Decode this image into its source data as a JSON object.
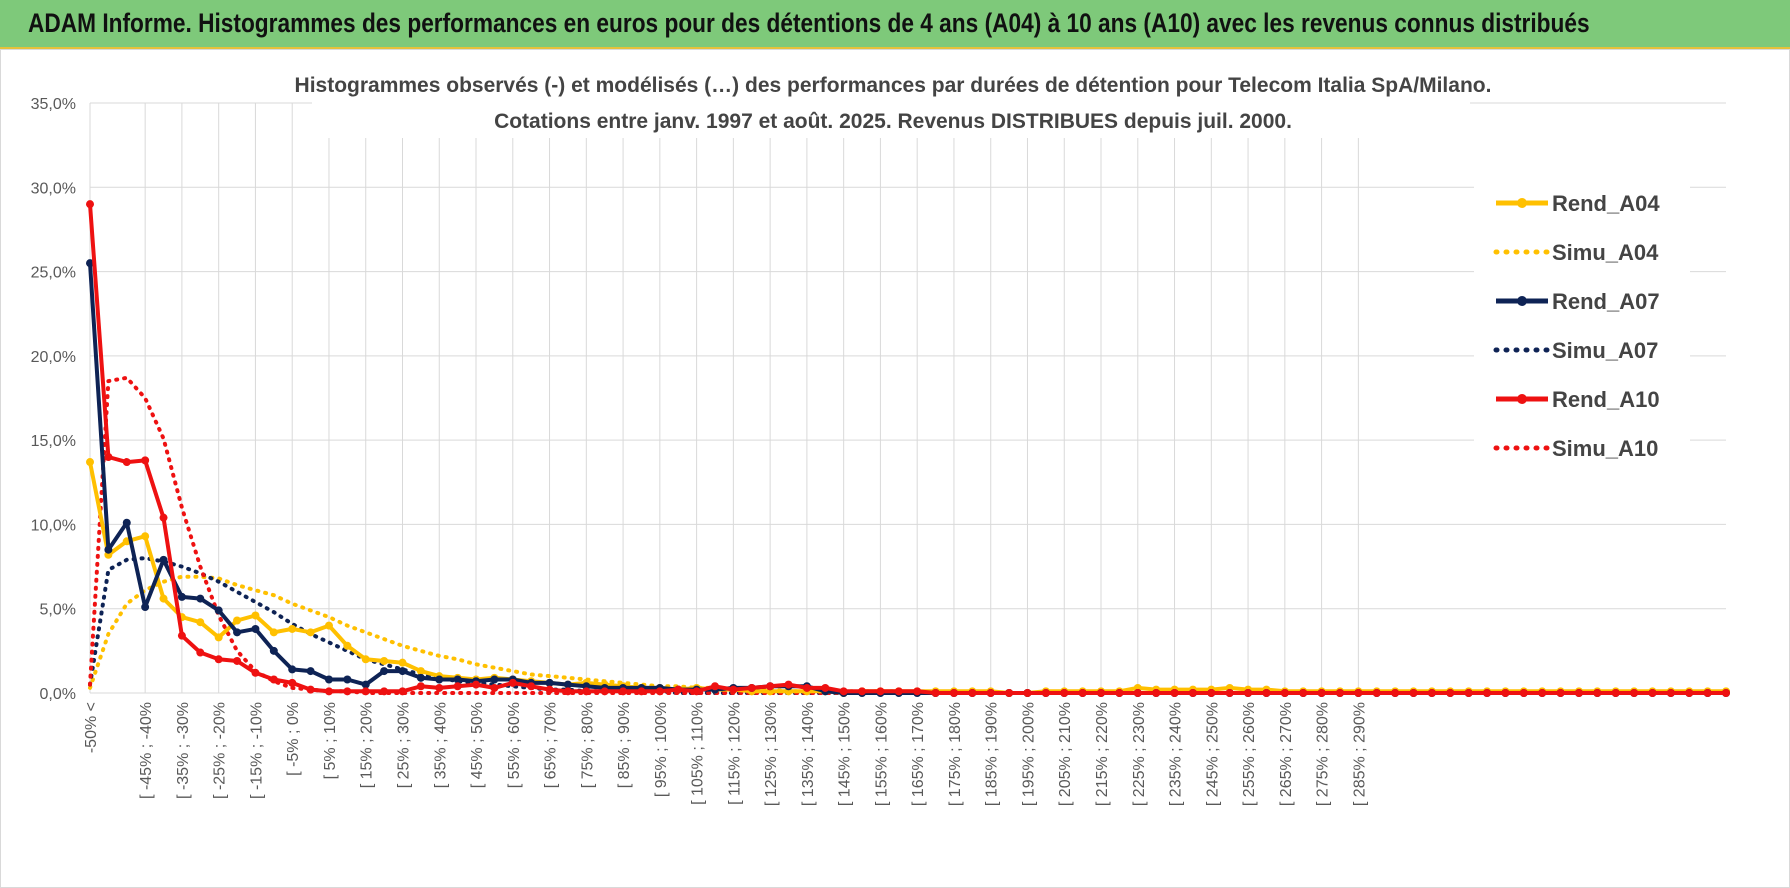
{
  "banner": {
    "title": "ADAM Informe. Histogrammes des performances en euros pour des détentions de 4 ans (A04) à 10 ans (A10) avec les revenus connus distribués"
  },
  "colors": {
    "A04": "#ffc000",
    "A07": "#0e2355",
    "A10": "#ee1111",
    "banner": "#7ec97a",
    "grid": "#d9d9d9"
  },
  "chart_data": {
    "type": "line",
    "title": "Histogrammes observés (-) et modélisés (…) des performances par durées de détention pour Telecom Italia SpA/Milano.",
    "subtitle": "Cotations entre janv. 1997 et août. 2025. Revenus DISTRIBUES depuis juil. 2000.",
    "ylim": [
      0,
      35
    ],
    "yticks": [
      "0,0%",
      "5,0%",
      "10,0%",
      "15,0%",
      "20,0%",
      "25,0%",
      "30,0%",
      "35,0%"
    ],
    "grid": true,
    "legend_position": "right",
    "x_labels_shown": [
      "-50% <",
      "[ -45% ; -40%",
      "[ -35% ; -30%",
      "[ -25% ; -20%",
      "[ -15% ; -10%",
      "[ -5% ; 0%",
      "[ 5% ; 10%",
      "[ 15% ; 20%",
      "[ 25% ; 30%",
      "[ 35% ; 40%",
      "[ 45% ; 50%",
      "[ 55% ; 60%",
      "[ 65% ; 70%",
      "[ 75% ; 80%",
      "[ 85% ; 90%",
      "[ 95% ; 100%",
      "[ 105% ; 110%",
      "[ 115% ; 120%",
      "[ 125% ; 130%",
      "[ 135% ; 140%",
      "[ 145% ; 150%",
      "[ 155% ; 160%",
      "[ 165% ; 170%",
      "[ 175% ; 180%",
      "[ 185% ; 190%",
      "[ 195% ; 200%",
      "[ 205% ; 210%",
      "[ 215% ; 220%",
      "[ 225% ; 230%",
      "[ 235% ; 240%",
      "[ 245% ; 250%",
      "[ 255% ; 260%",
      "[ 265% ; 270%",
      "[ 275% ; 280%",
      "[ 285% ; 290%"
    ],
    "series": [
      {
        "name": "Rend_A04",
        "style": "solid",
        "color": "#ffc000",
        "values": [
          13.7,
          8.2,
          9.0,
          9.3,
          5.6,
          4.5,
          4.2,
          3.3,
          4.3,
          4.6,
          3.6,
          3.8,
          3.6,
          4.0,
          2.8,
          2.0,
          1.9,
          1.8,
          1.3,
          1.0,
          0.9,
          0.8,
          0.9,
          0.8,
          0.7,
          0.6,
          0.5,
          0.6,
          0.5,
          0.4,
          0.3,
          0.3,
          0.2,
          0.3,
          0.2,
          0.2,
          0.1,
          0.1,
          0.1,
          0.1,
          0.1,
          0,
          0.1,
          0.1,
          0.1,
          0.1,
          0.1,
          0.1,
          0.1,
          0.1,
          0,
          0,
          0.1,
          0.1,
          0.1,
          0.1,
          0.1,
          0.3,
          0.2,
          0.2,
          0.2,
          0.2,
          0.3,
          0.2,
          0.2,
          0.1,
          0.1,
          0.1,
          0.1,
          0.1,
          0.1,
          0.1,
          0.1,
          0.1,
          0.1,
          0.1,
          0.1,
          0.1,
          0.1,
          0.1,
          0.1,
          0.1,
          0.1,
          0.1,
          0.1,
          0.1,
          0.1,
          0.1,
          0.1,
          0.1
        ]
      },
      {
        "name": "Simu_A04",
        "style": "dotted",
        "color": "#ffc000",
        "values": [
          0.3,
          3.5,
          5.3,
          6.1,
          6.6,
          6.9,
          6.9,
          6.8,
          6.4,
          6.1,
          5.8,
          5.3,
          4.9,
          4.5,
          4.0,
          3.6,
          3.2,
          2.8,
          2.5,
          2.2,
          2.0,
          1.7,
          1.5,
          1.3,
          1.1,
          1.0,
          0.9,
          0.8,
          0.7,
          0.6,
          0.5,
          0.4,
          0.4,
          0.3,
          0.3,
          0.2,
          0.2,
          0.2,
          0.1,
          0.1,
          0.1,
          0.1,
          0.1,
          0.1,
          0.1,
          0,
          0,
          0,
          0,
          0,
          0,
          0,
          0,
          0,
          0,
          0,
          0,
          0,
          0,
          0,
          0,
          0,
          0,
          0,
          0,
          0,
          0,
          0,
          0,
          0,
          0,
          0,
          0,
          0,
          0,
          0,
          0,
          0,
          0,
          0,
          0,
          0,
          0,
          0,
          0,
          0,
          0,
          0,
          0,
          0
        ]
      },
      {
        "name": "Rend_A07",
        "style": "solid",
        "color": "#0e2355",
        "values": [
          25.5,
          8.5,
          10.1,
          5.1,
          7.9,
          5.7,
          5.6,
          4.9,
          3.6,
          3.8,
          2.5,
          1.4,
          1.3,
          0.8,
          0.8,
          0.5,
          1.3,
          1.3,
          0.9,
          0.8,
          0.8,
          0.7,
          0.8,
          0.8,
          0.6,
          0.6,
          0.5,
          0.4,
          0.3,
          0.3,
          0.3,
          0.3,
          0.2,
          0.2,
          0.2,
          0.3,
          0.3,
          0.4,
          0.4,
          0.4,
          0.1,
          0,
          0,
          0,
          0,
          0,
          0,
          0,
          0,
          0,
          0,
          0,
          0,
          0,
          0,
          0,
          0,
          0,
          0,
          0,
          0,
          0,
          0,
          0,
          0,
          0,
          0,
          0,
          0,
          0,
          0,
          0,
          0,
          0,
          0,
          0,
          0,
          0,
          0,
          0,
          0,
          0,
          0,
          0,
          0,
          0,
          0,
          0,
          0,
          0
        ]
      },
      {
        "name": "Simu_A07",
        "style": "dotted",
        "color": "#0e2355",
        "values": [
          0.5,
          7.3,
          7.9,
          8.0,
          7.8,
          7.5,
          7.1,
          6.6,
          6.0,
          5.4,
          4.8,
          4.1,
          3.5,
          3.0,
          2.5,
          2.0,
          1.7,
          1.4,
          1.1,
          0.9,
          0.7,
          0.6,
          0.5,
          0.4,
          0.3,
          0.2,
          0.2,
          0.1,
          0.1,
          0.1,
          0.1,
          0.1,
          0,
          0,
          0,
          0,
          0,
          0,
          0,
          0,
          0,
          0,
          0,
          0,
          0,
          0,
          0,
          0,
          0,
          0,
          0,
          0,
          0,
          0,
          0,
          0,
          0,
          0,
          0,
          0,
          0,
          0,
          0,
          0,
          0,
          0,
          0,
          0,
          0,
          0,
          0,
          0,
          0,
          0,
          0,
          0,
          0,
          0,
          0,
          0,
          0,
          0,
          0,
          0,
          0,
          0,
          0,
          0,
          0,
          0
        ]
      },
      {
        "name": "Rend_A10",
        "style": "solid",
        "color": "#ee1111",
        "values": [
          29.0,
          14.0,
          13.7,
          13.8,
          10.4,
          3.4,
          2.4,
          2.0,
          1.9,
          1.2,
          0.8,
          0.6,
          0.2,
          0.1,
          0.1,
          0.1,
          0.1,
          0.1,
          0.4,
          0.3,
          0.4,
          0.5,
          0.3,
          0.6,
          0.4,
          0.2,
          0.1,
          0.1,
          0.1,
          0.1,
          0.1,
          0.1,
          0.2,
          0.1,
          0.4,
          0.2,
          0.3,
          0.4,
          0.5,
          0.3,
          0.3,
          0.1,
          0.1,
          0.1,
          0.1,
          0.1,
          0,
          0,
          0,
          0,
          0,
          0,
          0,
          0,
          0,
          0,
          0,
          0,
          0,
          0,
          0,
          0,
          0,
          0,
          0,
          0,
          0,
          0,
          0,
          0,
          0,
          0,
          0,
          0,
          0,
          0,
          0,
          0,
          0,
          0,
          0,
          0,
          0,
          0,
          0,
          0,
          0,
          0,
          0,
          0
        ]
      },
      {
        "name": "Simu_A10",
        "style": "dotted",
        "color": "#ee1111",
        "values": [
          0.5,
          18.5,
          18.7,
          17.5,
          15.1,
          11.0,
          7.5,
          4.6,
          2.5,
          1.3,
          0.7,
          0.3,
          0.2,
          0.1,
          0.1,
          0,
          0,
          0,
          0,
          0,
          0,
          0,
          0,
          0,
          0,
          0,
          0,
          0,
          0,
          0,
          0,
          0,
          0,
          0,
          0,
          0,
          0,
          0,
          0,
          0,
          0,
          0,
          0,
          0,
          0,
          0,
          0,
          0,
          0,
          0,
          0,
          0,
          0,
          0,
          0,
          0,
          0,
          0,
          0,
          0,
          0,
          0,
          0,
          0,
          0,
          0,
          0,
          0,
          0,
          0,
          0,
          0,
          0,
          0,
          0,
          0,
          0,
          0,
          0,
          0,
          0,
          0,
          0,
          0,
          0,
          0,
          0,
          0,
          0,
          0
        ]
      }
    ]
  }
}
